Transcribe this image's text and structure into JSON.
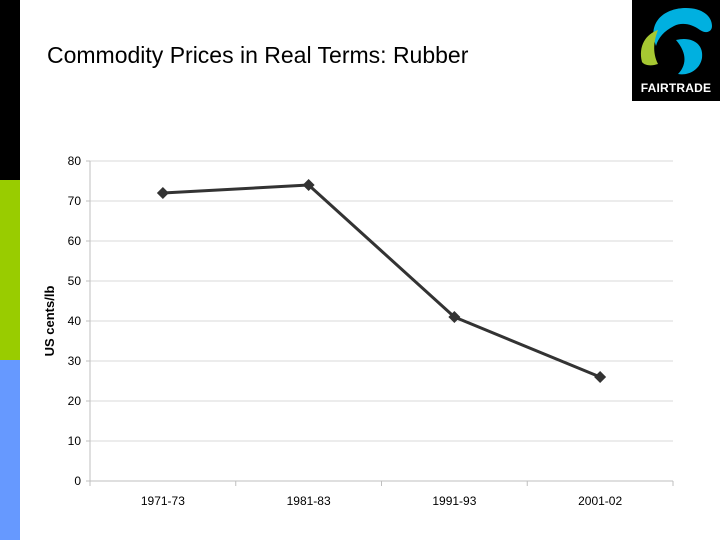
{
  "slide": {
    "title": "Commodity Prices in Real Terms: Rubber"
  },
  "logo": {
    "text": "FAIRTRADE",
    "colors": {
      "background": "#000000",
      "blue": "#00b0e0",
      "green": "#a6c832",
      "text": "#ffffff"
    }
  },
  "side_bar_colors": [
    "#000000",
    "#99cc00",
    "#6699ff"
  ],
  "chart_data": {
    "type": "line",
    "categories": [
      "1971-73",
      "1981-83",
      "1991-93",
      "2001-02"
    ],
    "series": [
      {
        "values": [
          72,
          74,
          41,
          26
        ]
      }
    ],
    "ylabel": "US cents/lb",
    "yticks": [
      0,
      10,
      20,
      30,
      40,
      50,
      60,
      70,
      80
    ],
    "ylim": [
      0,
      80
    ],
    "grid": true,
    "legend": "none",
    "marker": "diamond",
    "line_color": "#333333"
  }
}
